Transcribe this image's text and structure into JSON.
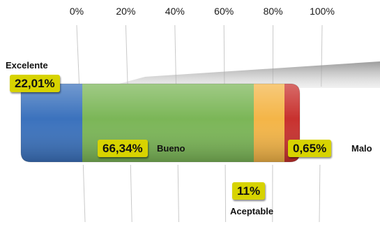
{
  "chart_data": {
    "type": "bar",
    "orientation": "horizontal",
    "stacked": true,
    "percent_axis_ticks": [
      "0%",
      "20%",
      "40%",
      "60%",
      "80%",
      "100%"
    ],
    "xlim": [
      0,
      100
    ],
    "grid": true,
    "segments": [
      {
        "name": "Excelente",
        "value": 22.01,
        "value_label": "22,01%",
        "color": "#3b72bd"
      },
      {
        "name": "Bueno",
        "value": 66.34,
        "value_label": "66,34%",
        "color": "#7bb657"
      },
      {
        "name": "Aceptable",
        "value": 11,
        "value_label": "11%",
        "color": "#f4b547"
      },
      {
        "name": "Malo",
        "value": 0.65,
        "value_label": "0,65%",
        "color": "#c8312e"
      }
    ]
  }
}
